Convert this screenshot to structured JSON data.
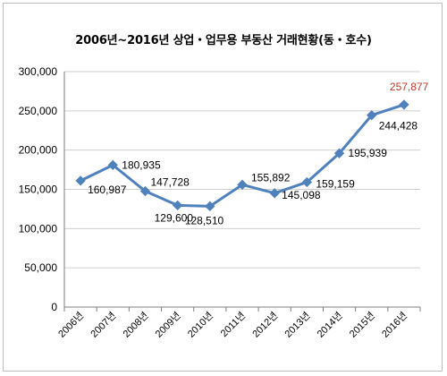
{
  "chart_data": {
    "type": "line",
    "title": "2006년~2016년 상업・업무용 부동산 거래현황(동・호수)",
    "categories": [
      "2006년",
      "2007년",
      "2008년",
      "2009년",
      "2010년",
      "2011년",
      "2012년",
      "2013년",
      "2014년",
      "2015년",
      "2016년"
    ],
    "series": [
      {
        "values": [
          160987,
          180935,
          147728,
          129600,
          128510,
          155892,
          145098,
          159159,
          195939,
          244428,
          257877
        ],
        "labels": [
          "160,987",
          "180,935",
          "147,728",
          "129,600",
          "128,510",
          "155,892",
          "145,098",
          "159,159",
          "195,939",
          "244,428",
          "257,877"
        ]
      }
    ],
    "ylim": [
      0,
      300000
    ],
    "yticks": [
      0,
      50000,
      100000,
      150000,
      200000,
      250000,
      300000
    ],
    "ytick_labels": [
      "0",
      "50,000",
      "100,000",
      "150,000",
      "200,000",
      "250,000",
      "300,000"
    ],
    "grid": "horizontal",
    "line_color": "#4f81bd",
    "highlight_color": "#c0392b",
    "highlight_index": 10
  }
}
